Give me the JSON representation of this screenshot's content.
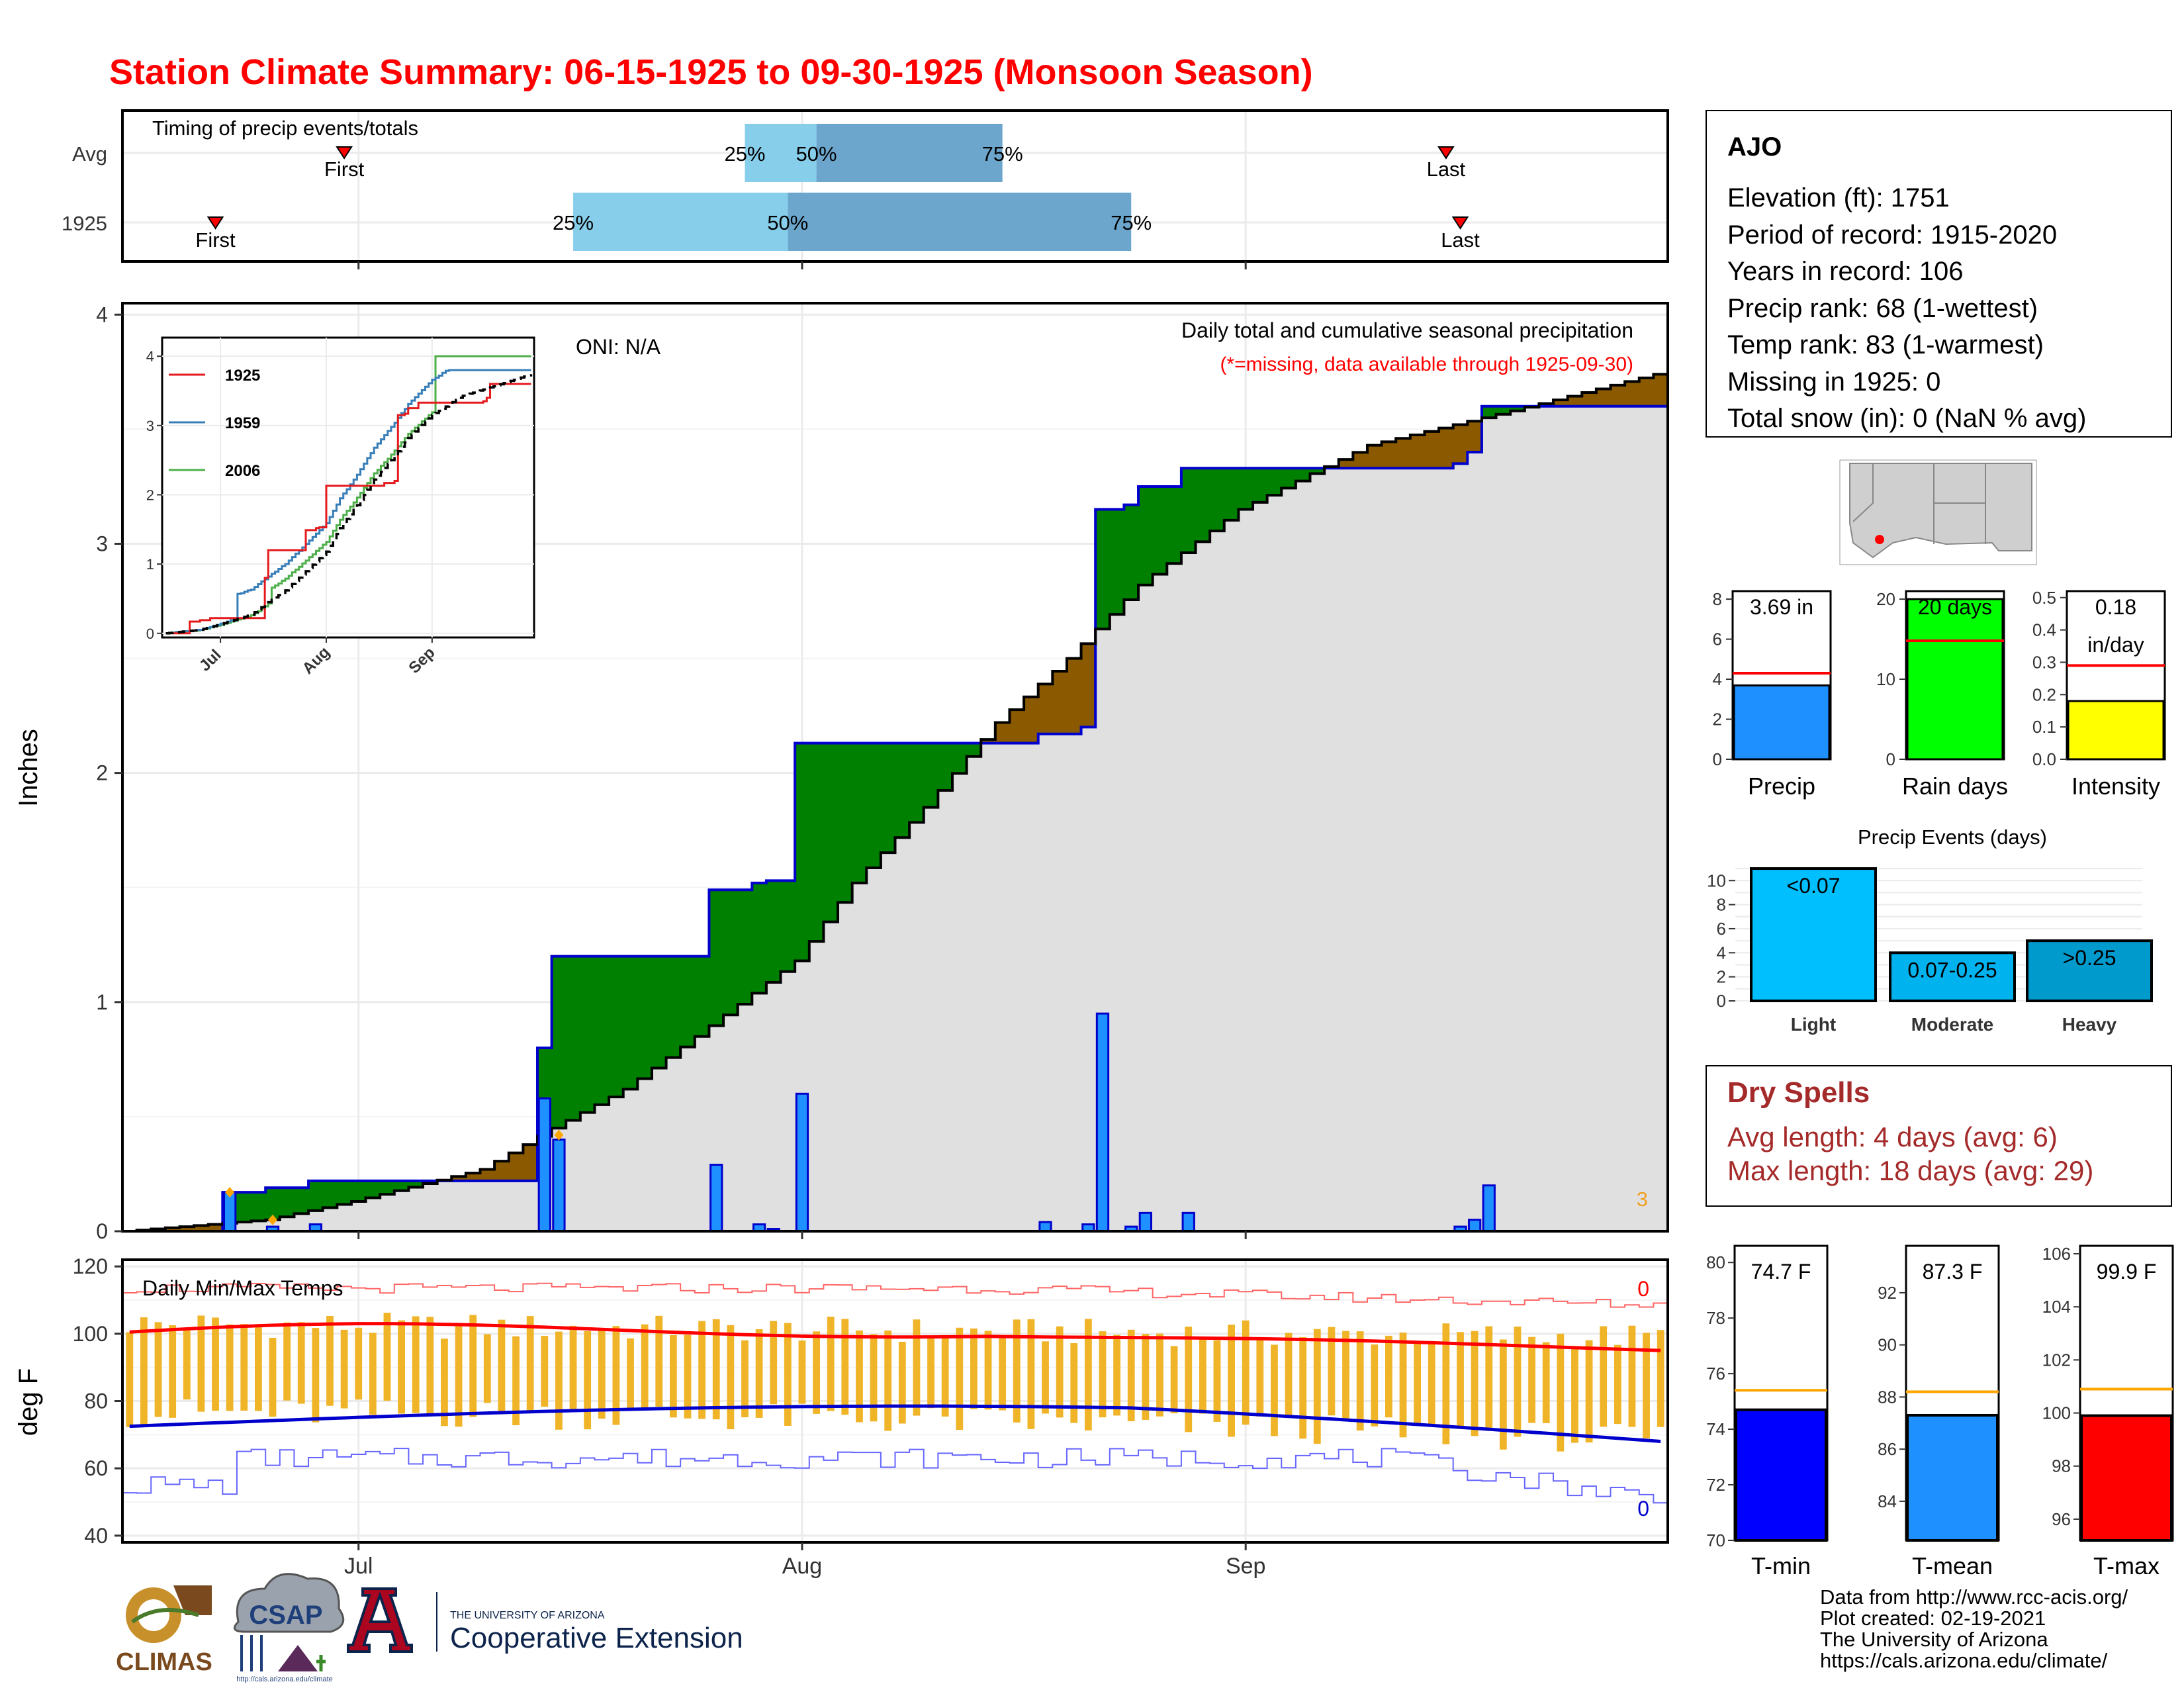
{
  "title": "Station Climate Summary: 06-15-1925 to 09-30-1925 (Monsoon Season)",
  "timing": {
    "label": "Timing of precip events/totals",
    "rows": [
      {
        "name": "Avg",
        "first": "06-30",
        "p25": "07-28",
        "p50": "08-02",
        "p75": "08-15",
        "last": "09-15"
      },
      {
        "name": "1925",
        "first": "06-21",
        "p25": "07-16",
        "p50": "07-31",
        "p75": "08-24",
        "last": "09-16"
      }
    ],
    "first_label": "First",
    "last_label": "Last",
    "pct_labels": [
      "25%",
      "50%",
      "75%"
    ]
  },
  "main_chart": {
    "ylabel": "Inches",
    "oni": "ONI: N/A",
    "note1": "Daily total and cumulative seasonal precipitation",
    "note2": "(*=missing, data available through 1925-09-30)",
    "corner": "3",
    "yticks": [
      "0",
      "1",
      "2",
      "3",
      "4"
    ],
    "xticks": [
      "Jul",
      "Aug",
      "Sep"
    ]
  },
  "chart_data": {
    "type": "area",
    "x_start": "1925-06-15",
    "x_end": "1925-09-30",
    "ylim": [
      0,
      4.05
    ],
    "daily_precip": [
      {
        "date": "1925-06-22",
        "value": 0.17
      },
      {
        "date": "1925-06-25",
        "value": 0.02
      },
      {
        "date": "1925-06-28",
        "value": 0.03
      },
      {
        "date": "1925-07-14",
        "value": 0.58
      },
      {
        "date": "1925-07-15",
        "value": 0.4
      },
      {
        "date": "1925-07-26",
        "value": 0.29
      },
      {
        "date": "1925-07-29",
        "value": 0.03
      },
      {
        "date": "1925-07-30",
        "value": 0.01
      },
      {
        "date": "1925-08-01",
        "value": 0.6
      },
      {
        "date": "1925-08-18",
        "value": 0.04
      },
      {
        "date": "1925-08-21",
        "value": 0.03
      },
      {
        "date": "1925-08-22",
        "value": 0.95
      },
      {
        "date": "1925-08-24",
        "value": 0.02
      },
      {
        "date": "1925-08-25",
        "value": 0.08
      },
      {
        "date": "1925-08-28",
        "value": 0.08
      },
      {
        "date": "1925-09-16",
        "value": 0.02
      },
      {
        "date": "1925-09-17",
        "value": 0.05
      },
      {
        "date": "1925-09-18",
        "value": 0.2
      }
    ],
    "avg_cumulative_points": [
      [
        "1925-06-15",
        0.0
      ],
      [
        "1925-06-25",
        0.05
      ],
      [
        "1925-07-01",
        0.13
      ],
      [
        "1925-07-10",
        0.27
      ],
      [
        "1925-07-15",
        0.45
      ],
      [
        "1925-07-20",
        0.62
      ],
      [
        "1925-07-25",
        0.85
      ],
      [
        "1925-08-01",
        1.18
      ],
      [
        "1925-08-05",
        1.52
      ],
      [
        "1925-08-10",
        1.85
      ],
      [
        "1925-08-15",
        2.22
      ],
      [
        "1925-08-20",
        2.5
      ],
      [
        "1925-08-25",
        2.82
      ],
      [
        "1925-09-01",
        3.15
      ],
      [
        "1925-09-10",
        3.43
      ],
      [
        "1925-09-20",
        3.58
      ],
      [
        "1925-09-30",
        3.74
      ]
    ],
    "inset": {
      "series": [
        {
          "name": "1925",
          "color": "#e41a1c"
        },
        {
          "name": "1959",
          "color": "#377eb8"
        },
        {
          "name": "2006",
          "color": "#4daf4a"
        }
      ],
      "yticks": [
        "0",
        "1",
        "2",
        "3",
        "4"
      ],
      "xticks": [
        "Jul",
        "Aug",
        "Sep"
      ]
    }
  },
  "temps": {
    "label": "Daily Min/Max Temps",
    "ylabel": "deg F",
    "yticks": [
      "40",
      "60",
      "80",
      "100",
      "120"
    ],
    "xticks": [
      "Jul",
      "Aug",
      "Sep"
    ],
    "count_max": "0",
    "count_min": "0",
    "ylim": [
      38,
      122
    ]
  },
  "station": {
    "name": "AJO",
    "lines": [
      "Elevation (ft): 1751",
      "Period of record: 1915-2020",
      "Years in record: 106",
      "Precip rank: 68 (1-wettest)",
      "Temp rank: 83 (1-warmest)",
      "Missing in 1925: 0",
      "Total snow (in): 0 (NaN % avg)"
    ]
  },
  "mini_bars": [
    {
      "label": "Precip",
      "value": 3.69,
      "avg": 4.3,
      "text": "3.69 in",
      "ylim": [
        0,
        8.4
      ],
      "yticks": [
        "0",
        "2",
        "4",
        "6",
        "8"
      ],
      "tickvals": [
        0,
        2,
        4,
        6,
        8
      ],
      "color": "#1e90ff"
    },
    {
      "label": "Rain days",
      "value": 20,
      "avg": 14.8,
      "text": "20 days",
      "ylim": [
        0,
        21
      ],
      "yticks": [
        "0",
        "10",
        "20"
      ],
      "tickvals": [
        0,
        10,
        20
      ],
      "color": "#00ff00"
    },
    {
      "label": "Intensity",
      "value": 0.18,
      "avg": 0.29,
      "text": "0.18",
      "text2": "in/day",
      "ylim": [
        0,
        0.52
      ],
      "yticks": [
        "0.0",
        "0.1",
        "0.2",
        "0.3",
        "0.4",
        "0.5"
      ],
      "tickvals": [
        0,
        0.1,
        0.2,
        0.3,
        0.4,
        0.5
      ],
      "color": "#ffff00"
    }
  ],
  "events": {
    "title": "Precip Events (days)",
    "categories": [
      "Light",
      "Moderate",
      "Heavy"
    ],
    "bar_labels": [
      "<0.07",
      "0.07-0.25",
      ">0.25"
    ],
    "values": [
      11,
      4,
      5
    ],
    "colors": [
      "#00bfff",
      "#00b2ee",
      "#009acd"
    ],
    "yticks": [
      "0",
      "2",
      "4",
      "6",
      "8",
      "10"
    ]
  },
  "dry_spells": {
    "title": "Dry Spells",
    "line1": "Avg length: 4 days (avg: 6)",
    "line2": "Max length: 18 days (avg: 29)"
  },
  "temp_bars": [
    {
      "label": "T-min",
      "value": 74.7,
      "avg": 75.4,
      "text": "74.7 F",
      "ylim": [
        70,
        80.6
      ],
      "yticks": [
        "70",
        "72",
        "74",
        "76",
        "78",
        "80"
      ],
      "tickvals": [
        70,
        72,
        74,
        76,
        78,
        80
      ],
      "color": "#0000ff"
    },
    {
      "label": "T-mean",
      "value": 87.3,
      "avg": 88.2,
      "text": "87.3 F",
      "ylim": [
        82.5,
        93.8
      ],
      "yticks": [
        "84",
        "86",
        "88",
        "90",
        "92"
      ],
      "tickvals": [
        84,
        86,
        88,
        90,
        92
      ],
      "color": "#1e90ff"
    },
    {
      "label": "T-max",
      "value": 99.9,
      "avg": 100.9,
      "text": "99.9 F",
      "ylim": [
        95.2,
        106.3
      ],
      "yticks": [
        "96",
        "98",
        "100",
        "102",
        "104",
        "106"
      ],
      "tickvals": [
        96,
        98,
        100,
        102,
        104,
        106
      ],
      "color": "#ff0000"
    }
  ],
  "footer": {
    "lines": [
      "Data from http://www.rcc-acis.org/",
      "Plot created: 02-19-2021",
      "The University of Arizona",
      "https://cals.arizona.edu/climate/"
    ],
    "logos": {
      "climas": "CLIMAS",
      "csap": "CSAP",
      "csap_url": "http://cals.arizona.edu/climate",
      "ua_small": "THE UNIVERSITY OF ARIZONA",
      "ua_big": "Cooperative Extension"
    }
  },
  "colors": {
    "title": "#ff0000",
    "precip_bar": "#1e90ff",
    "above_avg": "#008000",
    "below_avg": "#8b5a00",
    "avg_area": "#e0e0e0",
    "quartile_light": "#87ceeb",
    "quartile_dark": "#6ca6cd",
    "temp_bar": "#f0b429",
    "dry_spell": "#a52a2a"
  }
}
